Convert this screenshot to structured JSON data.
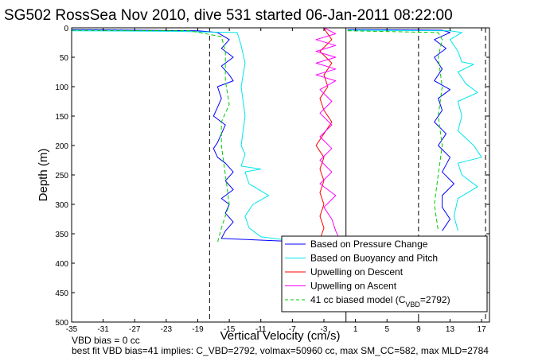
{
  "chart_data": {
    "type": "line",
    "title": "SG502 RossSea Nov 2010, dive 531 started 06-Jan-2011 08:22:00",
    "xlabel": "Vertical Velocity (cm/s)",
    "ylabel": "Depth (m)",
    "xlim": [
      -35,
      18
    ],
    "ylim": [
      0,
      500
    ],
    "y_reversed": true,
    "x_ticks": [
      "-35",
      "-31",
      "-27",
      "-23",
      "-19",
      "-15",
      "-11",
      "-7",
      "-3",
      "1",
      "5",
      "9",
      "13",
      "17"
    ],
    "y_ticks": [
      "0",
      "50",
      "100",
      "150",
      "200",
      "250",
      "300",
      "350",
      "400",
      "450",
      "500"
    ],
    "vlines": [
      {
        "x": -17.5,
        "style": "dashed",
        "color": "#000000"
      },
      {
        "x": 9.0,
        "style": "dashed",
        "color": "#000000"
      },
      {
        "x": 17.5,
        "style": "dashed",
        "color": "#000000"
      },
      {
        "x": -0.2,
        "style": "solid",
        "color": "#000000"
      }
    ],
    "legend": {
      "placement": "bottom-right",
      "entries": [
        {
          "label": "Based on Pressure Change",
          "color": "#0000ff",
          "style": "solid"
        },
        {
          "label": "Based on Buoyancy and Pitch",
          "color": "#00e5ee",
          "style": "solid"
        },
        {
          "label": "Upwelling on Descent",
          "color": "#ff0000",
          "style": "solid"
        },
        {
          "label": "Upwelling on Ascent",
          "color": "#ff00ff",
          "style": "solid"
        },
        {
          "label": "41 cc biased model (C",
          "sub": "VBD",
          "suffix": "=2792)",
          "color": "#00cc00",
          "style": "dashed"
        }
      ]
    },
    "series": [
      {
        "color": "#0000ff",
        "style": "solid",
        "points": [
          [
            -35,
            3
          ],
          [
            -26,
            4
          ],
          [
            -19,
            5
          ],
          [
            -16.5,
            8
          ],
          [
            -15,
            20
          ],
          [
            -16,
            35
          ],
          [
            -14.5,
            50
          ],
          [
            -16,
            65
          ],
          [
            -15,
            80
          ],
          [
            -14.5,
            90
          ],
          [
            -16.5,
            100
          ],
          [
            -16,
            120
          ],
          [
            -16.5,
            135
          ],
          [
            -17,
            150
          ],
          [
            -15.5,
            165
          ],
          [
            -16,
            180
          ],
          [
            -16.5,
            195
          ],
          [
            -17,
            205
          ],
          [
            -16.5,
            220
          ],
          [
            -15.5,
            230
          ],
          [
            -14.5,
            245
          ],
          [
            -15.5,
            260
          ],
          [
            -14.5,
            275
          ],
          [
            -16,
            290
          ],
          [
            -15,
            300
          ],
          [
            -15.5,
            315
          ],
          [
            -14.5,
            330
          ],
          [
            -15.5,
            345
          ],
          [
            -16,
            358
          ],
          [
            -9,
            362
          ],
          [
            -4,
            364
          ]
        ]
      },
      {
        "color": "#00e5ee",
        "style": "solid",
        "points": [
          [
            -35,
            5
          ],
          [
            -22,
            6
          ],
          [
            -14,
            8
          ],
          [
            -13.5,
            30
          ],
          [
            -13,
            60
          ],
          [
            -13.5,
            100
          ],
          [
            -13,
            150
          ],
          [
            -13.5,
            200
          ],
          [
            -13,
            215
          ],
          [
            -13.5,
            235
          ],
          [
            -11,
            240
          ],
          [
            -13,
            245
          ],
          [
            -12.5,
            265
          ],
          [
            -10,
            285
          ],
          [
            -12,
            300
          ],
          [
            -13,
            320
          ],
          [
            -12.5,
            340
          ],
          [
            -11,
            355
          ],
          [
            -7,
            362
          ],
          [
            -4,
            364
          ]
        ]
      },
      {
        "color": "#00cc00",
        "style": "dashed",
        "points": [
          [
            -35,
            4
          ],
          [
            -20,
            5
          ],
          [
            -16,
            15
          ],
          [
            -15.5,
            40
          ],
          [
            -15.5,
            90
          ],
          [
            -15,
            130
          ],
          [
            -16,
            160
          ],
          [
            -16,
            200
          ],
          [
            -15.5,
            250
          ],
          [
            -15,
            300
          ],
          [
            -16,
            340
          ],
          [
            -16.5,
            365
          ]
        ]
      },
      {
        "color": "#ff0000",
        "style": "solid",
        "points": [
          [
            -3,
            1
          ],
          [
            -2,
            20
          ],
          [
            -3.5,
            40
          ],
          [
            -2,
            60
          ],
          [
            -3,
            80
          ],
          [
            -2.5,
            100
          ],
          [
            -3.5,
            120
          ],
          [
            -3,
            140
          ],
          [
            -2,
            160
          ],
          [
            -3,
            180
          ],
          [
            -4,
            200
          ],
          [
            -3,
            220
          ],
          [
            -3.5,
            240
          ],
          [
            -3,
            260
          ],
          [
            -3.5,
            280
          ],
          [
            -3,
            300
          ],
          [
            -3.5,
            320
          ],
          [
            -3,
            340
          ],
          [
            -3.5,
            360
          ]
        ]
      },
      {
        "color": "#ff00ff",
        "style": "solid",
        "points": [
          [
            -3,
            0
          ],
          [
            -1.5,
            10
          ],
          [
            -4,
            20
          ],
          [
            -1.5,
            30
          ],
          [
            -4,
            40
          ],
          [
            -1.5,
            50
          ],
          [
            -4,
            60
          ],
          [
            -1.5,
            70
          ],
          [
            -4,
            80
          ],
          [
            -1.5,
            90
          ],
          [
            -3.5,
            105
          ],
          [
            -2,
            125
          ],
          [
            -3.5,
            145
          ],
          [
            -2,
            165
          ],
          [
            -3.5,
            185
          ],
          [
            -2,
            205
          ],
          [
            -3.5,
            225
          ],
          [
            -2,
            245
          ],
          [
            -3.5,
            265
          ],
          [
            -1.5,
            285
          ],
          [
            -3,
            305
          ],
          [
            -2,
            325
          ],
          [
            -1.5,
            345
          ],
          [
            -1,
            360
          ]
        ]
      },
      {
        "color": "#0000ff",
        "style": "solid",
        "points": [
          [
            0,
            3
          ],
          [
            12,
            4
          ],
          [
            13,
            8
          ],
          [
            11,
            20
          ],
          [
            12.5,
            35
          ],
          [
            11,
            50
          ],
          [
            12,
            70
          ],
          [
            11,
            90
          ],
          [
            13,
            105
          ],
          [
            11.5,
            120
          ],
          [
            12,
            140
          ],
          [
            11,
            160
          ],
          [
            12.5,
            180
          ],
          [
            11.5,
            200
          ],
          [
            13,
            220
          ],
          [
            12,
            245
          ],
          [
            13.5,
            265
          ],
          [
            12,
            285
          ],
          [
            12,
            305
          ],
          [
            13,
            325
          ],
          [
            12,
            345
          ]
        ]
      },
      {
        "color": "#00e5ee",
        "style": "solid",
        "points": [
          [
            0,
            4
          ],
          [
            13,
            5
          ],
          [
            14.5,
            8
          ],
          [
            13,
            20
          ],
          [
            14,
            40
          ],
          [
            14.5,
            58
          ],
          [
            16,
            62
          ],
          [
            14,
            75
          ],
          [
            15,
            95
          ],
          [
            16.5,
            110
          ],
          [
            14,
            125
          ],
          [
            14.5,
            150
          ],
          [
            14,
            175
          ],
          [
            16,
            200
          ],
          [
            17,
            220
          ],
          [
            14,
            230
          ],
          [
            14.5,
            250
          ],
          [
            16.5,
            270
          ],
          [
            14,
            290
          ],
          [
            13.5,
            320
          ],
          [
            14,
            345
          ]
        ]
      },
      {
        "color": "#00cc00",
        "style": "dashed",
        "points": [
          [
            0,
            5
          ],
          [
            11.5,
            8
          ],
          [
            12,
            20
          ],
          [
            11.5,
            50
          ],
          [
            12,
            100
          ],
          [
            11.5,
            150
          ],
          [
            12,
            200
          ],
          [
            11.5,
            250
          ],
          [
            11,
            300
          ],
          [
            11.5,
            345
          ]
        ]
      }
    ]
  },
  "footer": {
    "line1": "VBD bias = 0 cc",
    "line2": "best fit VBD bias=41 implies: C_VBD=2792, volmax=50960 cc, max SM_CC=582, max MLD=2784"
  }
}
